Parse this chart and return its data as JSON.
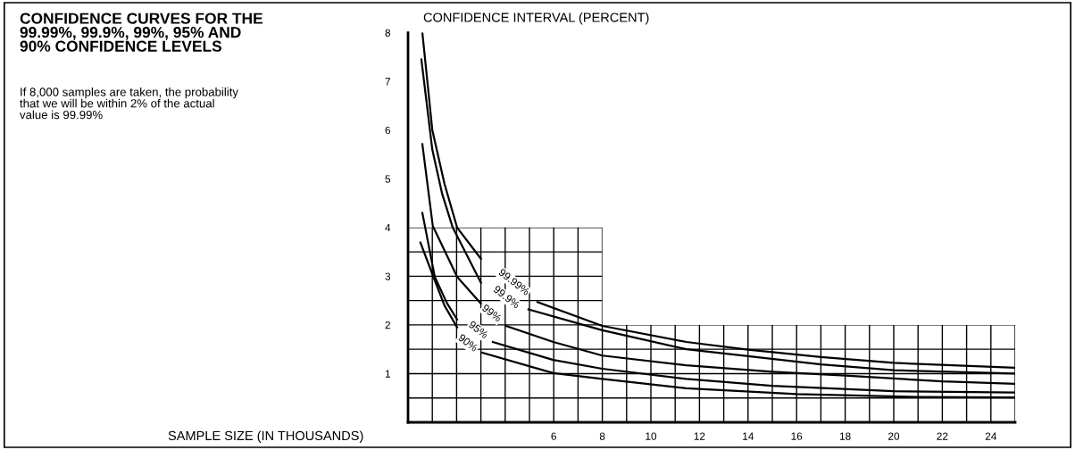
{
  "chart_data": {
    "type": "line",
    "title": "CONFIDENCE CURVES FOR THE\n99.99%, 99.9%, 99%, 95% AND\n90% CONFIDENCE LEVELS",
    "subtitle": "If 8,000 samples are taken, the probability\nthat we will be within 2% of the actual\nvalue is 99.99%",
    "xlabel": "SAMPLE SIZE (IN THOUSANDS)",
    "ylabel": "CONFIDENCE INTERVAL (PERCENT)",
    "series": [
      {
        "color": "#000000",
        "x": [
          0.59,
          1.0,
          1.5,
          2.02,
          3.0,
          3.8,
          5.33,
          8.0,
          11.46,
          14,
          17,
          20,
          25
        ],
        "values": [
          8.0,
          6.0,
          4.9,
          4.0,
          3.36,
          null,
          2.47,
          1.98,
          1.65,
          1.49,
          1.34,
          1.22,
          1.12
        ]
      },
      {
        "color": "#000000",
        "x": [
          0.55,
          1.0,
          1.4,
          1.84,
          3.0,
          3.6,
          4.96,
          8.0,
          11.46,
          14,
          17,
          20,
          25
        ],
        "values": [
          7.45,
          5.6,
          4.7,
          4.0,
          2.87,
          null,
          2.32,
          1.89,
          1.5,
          1.36,
          1.19,
          1.07,
          1.0
        ]
      },
      {
        "color": "#000000",
        "x": [
          0.59,
          1.02,
          2.02,
          3.0,
          3.4,
          4.04,
          5.98,
          8.0,
          11.46,
          15,
          18,
          22,
          25
        ],
        "values": [
          5.71,
          4.03,
          2.99,
          2.44,
          null,
          1.98,
          1.65,
          1.37,
          1.17,
          1.04,
          0.96,
          0.84,
          0.79
        ]
      },
      {
        "color": "#000000",
        "x": [
          0.59,
          1.1,
          1.6,
          2.02,
          2.9,
          3.49,
          5.98,
          8.0,
          11.46,
          15,
          20,
          25
        ],
        "values": [
          4.3,
          2.99,
          2.45,
          2.11,
          null,
          1.65,
          1.28,
          1.1,
          0.89,
          0.75,
          0.64,
          0.61
        ]
      },
      {
        "color": "#000000",
        "x": [
          0.51,
          1.02,
          1.5,
          2.02,
          2.5,
          3.06,
          5.98,
          8.0,
          11.46,
          16,
          21,
          25
        ],
        "values": [
          3.69,
          3.02,
          2.4,
          1.95,
          null,
          1.43,
          1.01,
          0.89,
          0.7,
          0.58,
          0.52,
          0.51
        ]
      }
    ],
    "annotations": [
      {
        "text": "99.99%",
        "x": 4.35,
        "y": 2.87
      },
      {
        "text": "99.9%",
        "x": 4.04,
        "y": 2.56
      },
      {
        "text": "99%",
        "x": 3.43,
        "y": 2.23
      },
      {
        "text": "95%",
        "x": 2.88,
        "y": 1.89
      },
      {
        "text": "90%",
        "x": 2.45,
        "y": 1.62
      }
    ],
    "xlim": [
      0,
      25
    ],
    "xticks": [
      {
        "value": 1,
        "label": null
      },
      {
        "value": 2,
        "label": null
      },
      {
        "value": 3,
        "label": null
      },
      {
        "value": 4,
        "label": null
      },
      {
        "value": 5,
        "label": null
      },
      6,
      {
        "value": 7,
        "label": null
      },
      8,
      {
        "value": 9,
        "label": null
      },
      10,
      {
        "value": 11,
        "label": null
      },
      12,
      {
        "value": 13,
        "label": null
      },
      14,
      {
        "value": 15,
        "label": null
      },
      16,
      {
        "value": 17,
        "label": null
      },
      18,
      {
        "value": 19,
        "label": null
      },
      20,
      {
        "value": 21,
        "label": null
      },
      22,
      {
        "value": 23,
        "label": null
      },
      24,
      {
        "value": 25,
        "label": null
      }
    ],
    "ylim": [
      0,
      8
    ],
    "yticks": [
      {
        "value": 0.5,
        "label": null
      },
      1,
      {
        "value": 1.5,
        "label": null
      },
      2,
      {
        "value": 2.5,
        "label": null
      },
      3,
      {
        "value": 3.5,
        "label": null
      },
      4,
      5,
      6,
      7,
      8
    ],
    "grid": true,
    "marker": "none",
    "line_style": "solid"
  }
}
